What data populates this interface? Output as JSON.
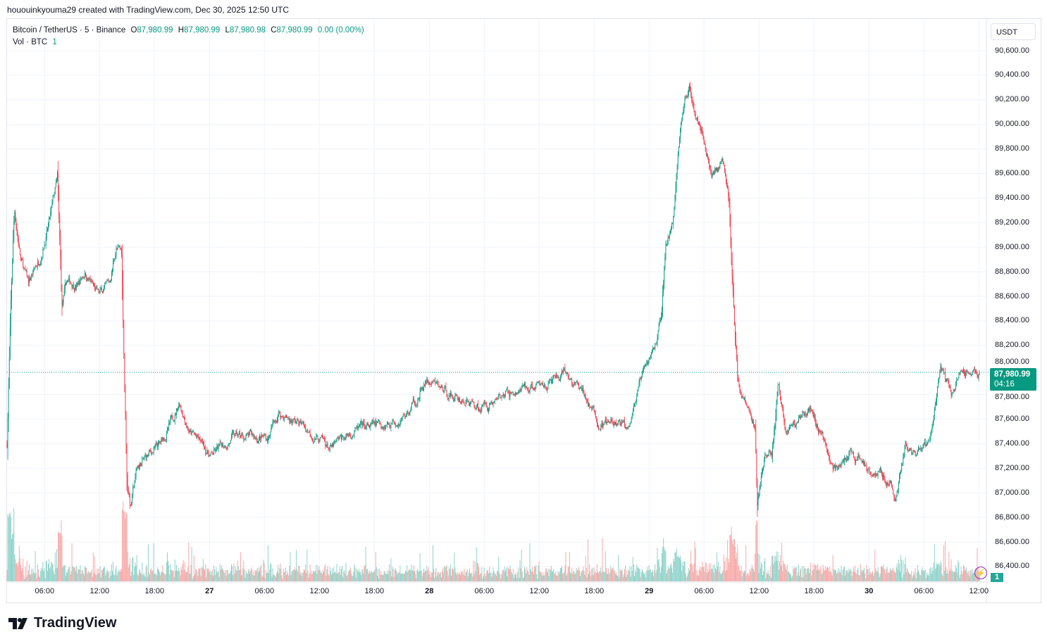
{
  "credit": "hououinkyouma29 created with TradingView.com, Dec 30, 2025 12:50 UTC",
  "legend": {
    "symbol": "Bitcoin / TetherUS · 5 · Binance",
    "o_label": "O",
    "o": "87,980.99",
    "h_label": "H",
    "h": "87,980.99",
    "l_label": "L",
    "l": "87,980.98",
    "c_label": "C",
    "c": "87,980.99",
    "change": "0.00 (0.00%)",
    "vol_label": "Vol · BTC",
    "vol": "1"
  },
  "currency": "USDT",
  "last_price": "87,980.99",
  "countdown": "04:16",
  "volume_badge": "1",
  "logo_text": "TradingView",
  "colors": {
    "up": "#089981",
    "down": "#f23645",
    "vol_up": "#8fd3c9",
    "vol_down": "#f7a9a7"
  },
  "chart_data": {
    "type": "candlestick",
    "title": "Bitcoin / TetherUS · 5 · Binance",
    "interval_minutes": 5,
    "ylim": [
      86300,
      90700
    ],
    "y_ticks": [
      "90,600.00",
      "90,400.00",
      "90,200.00",
      "90,000.00",
      "89,800.00",
      "89,600.00",
      "89,400.00",
      "89,200.00",
      "89,000.00",
      "88,800.00",
      "88,600.00",
      "88,400.00",
      "88,200.00",
      "88,000.00",
      "87,800.00",
      "87,600.00",
      "87,400.00",
      "87,200.00",
      "87,000.00",
      "86,800.00",
      "86,600.00",
      "86,400.00"
    ],
    "y_tick_values": [
      90600,
      90400,
      90200,
      90000,
      89800,
      89600,
      89400,
      89200,
      89000,
      88800,
      88600,
      88400,
      88200,
      88000,
      87800,
      87600,
      87400,
      87200,
      87000,
      86800,
      86600,
      86400
    ],
    "x_ticks": [
      {
        "label": "06:00",
        "hour": 4.1
      },
      {
        "label": "12:00",
        "hour": 10.1
      },
      {
        "label": "18:00",
        "hour": 16.1
      },
      {
        "label": "27",
        "hour": 22.1,
        "bold": true
      },
      {
        "label": "06:00",
        "hour": 28.1
      },
      {
        "label": "12:00",
        "hour": 34.1
      },
      {
        "label": "18:00",
        "hour": 40.1
      },
      {
        "label": "28",
        "hour": 46.1,
        "bold": true
      },
      {
        "label": "06:00",
        "hour": 52.1
      },
      {
        "label": "12:00",
        "hour": 58.1
      },
      {
        "label": "18:00",
        "hour": 64.1
      },
      {
        "label": "29",
        "hour": 70.1,
        "bold": true
      },
      {
        "label": "06:00",
        "hour": 76.1
      },
      {
        "label": "12:00",
        "hour": 82.1
      },
      {
        "label": "18:00",
        "hour": 88.1
      },
      {
        "label": "30",
        "hour": 94.1,
        "bold": true
      },
      {
        "label": "06:00",
        "hour": 100.1
      },
      {
        "label": "12:00",
        "hour": 106.1
      }
    ],
    "price_path_hours": [
      0,
      0.4,
      0.8,
      1.5,
      2.3,
      3.5,
      4.6,
      5.5,
      6,
      6.5,
      7.7,
      8.5,
      10,
      11.2,
      11.9,
      12.5,
      12.8,
      13.1,
      13.5,
      14.2,
      15.4,
      16.9,
      18.1,
      18.8,
      20,
      22.3,
      24.6,
      28.5,
      29.6,
      32.3,
      35.4,
      37.7,
      40.8,
      43.8,
      45.8,
      48.5,
      51.5,
      54.6,
      57.7,
      60.8,
      63.1,
      64.6,
      67.7,
      69.2,
      70.8,
      71.5,
      71.9,
      72.7,
      73.5,
      74.5,
      75.8,
      76.9,
      78.1,
      78.8,
      79.4,
      79.8,
      80.8,
      81.7,
      81.9,
      82.7,
      83.5,
      84.2,
      85,
      86.2,
      87.7,
      88.8,
      90.4,
      92.3,
      94.6,
      96.5,
      96.9,
      98.1,
      99.2,
      100.8,
      101.5,
      101.9,
      103.1,
      104.2,
      106.2
    ],
    "price_path_values": [
      87400,
      88500,
      89300,
      88900,
      88700,
      88900,
      89200,
      89550,
      88500,
      88700,
      88700,
      88800,
      88600,
      88700,
      89000,
      88950,
      88000,
      87100,
      86900,
      87200,
      87300,
      87400,
      87600,
      87750,
      87500,
      87300,
      87450,
      87450,
      87650,
      87550,
      87350,
      87500,
      87550,
      87650,
      87900,
      87800,
      87700,
      87800,
      87850,
      87950,
      87800,
      87550,
      87550,
      87900,
      88200,
      88500,
      89000,
      89200,
      90000,
      90300,
      90000,
      89600,
      89700,
      89400,
      88400,
      87900,
      87700,
      87500,
      86900,
      87300,
      87300,
      87900,
      87500,
      87600,
      87700,
      87500,
      87200,
      87300,
      87200,
      87100,
      86900,
      87400,
      87250,
      87450,
      87800,
      88000,
      87800,
      88000,
      87981
    ],
    "last_price": 87980.99
  }
}
